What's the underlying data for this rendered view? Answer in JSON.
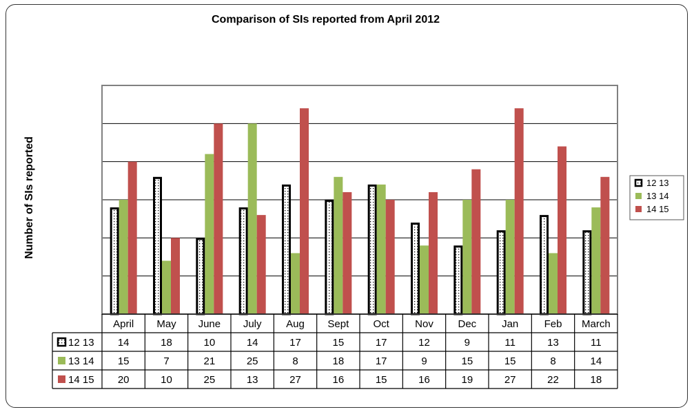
{
  "chart_data": {
    "type": "bar",
    "title": "Comparison of SIs reported from April 2012",
    "xlabel": "",
    "ylabel": "Number of SIs reported",
    "ylim": [
      0,
      30
    ],
    "grid": true,
    "legend_position": "right",
    "categories": [
      "April",
      "May",
      "June",
      "July",
      "Aug",
      "Sept",
      "Oct",
      "Nov",
      "Dec",
      "Jan",
      "Feb",
      "March"
    ],
    "series": [
      {
        "name": "12 13",
        "values": [
          14,
          18,
          10,
          14,
          17,
          15,
          17,
          12,
          9,
          11,
          13,
          11
        ],
        "color": "#ffffff",
        "stroke": "#000000",
        "pattern": "dotted"
      },
      {
        "name": "13 14",
        "values": [
          15,
          7,
          21,
          25,
          8,
          18,
          17,
          9,
          15,
          15,
          8,
          14
        ],
        "color": "#9bbb59",
        "stroke": "none",
        "pattern": "solid"
      },
      {
        "name": "14 15",
        "values": [
          20,
          10,
          25,
          13,
          27,
          16,
          15,
          16,
          19,
          27,
          22,
          18
        ],
        "color": "#c0504d",
        "stroke": "none",
        "pattern": "solid"
      }
    ],
    "data_table": true
  }
}
